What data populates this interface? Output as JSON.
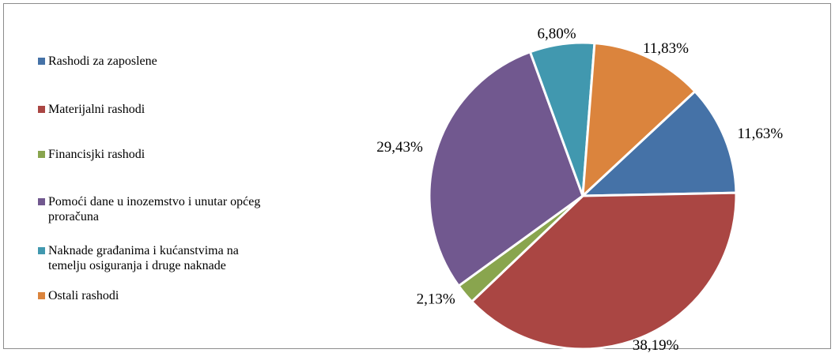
{
  "chart_data": {
    "type": "pie",
    "categories": [
      "Rashodi za zaposlene",
      "Materijalni rashodi",
      "Financisjki rashodi",
      "Pomoći dane u inozemstvo i unutar općeg proračuna",
      "Naknade građanima i kućanstvima na temelju osiguranja i druge naknade",
      "Ostali rashodi"
    ],
    "values": [
      11.63,
      38.19,
      2.13,
      29.43,
      6.8,
      11.83
    ],
    "value_labels": [
      "11,63%",
      "38,19%",
      "2,13%",
      "29,43%",
      "6,80%",
      "11,83%"
    ],
    "colors": [
      "#4572a7",
      "#aa4643",
      "#89a54e",
      "#71588f",
      "#4198af",
      "#db843d"
    ],
    "legend": "left"
  }
}
